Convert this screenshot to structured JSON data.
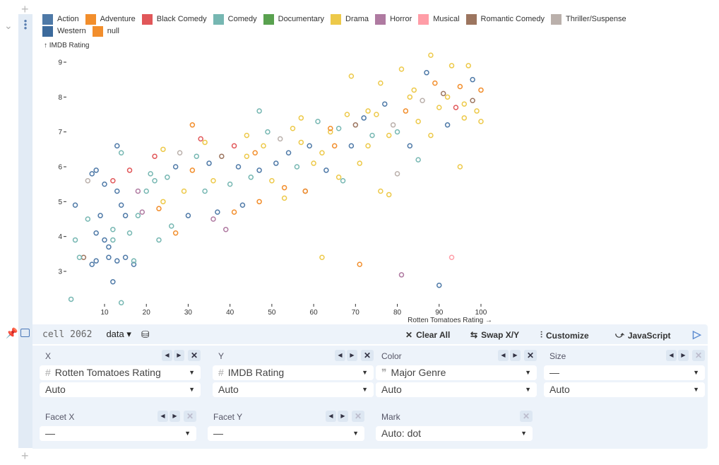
{
  "legend": [
    {
      "label": "Action",
      "color": "#4e79a7"
    },
    {
      "label": "Adventure",
      "color": "#f28e2c"
    },
    {
      "label": "Black Comedy",
      "color": "#e15759"
    },
    {
      "label": "Comedy",
      "color": "#76b7b2"
    },
    {
      "label": "Documentary",
      "color": "#59a14f"
    },
    {
      "label": "Drama",
      "color": "#edc949"
    },
    {
      "label": "Horror",
      "color": "#af7aa1"
    },
    {
      "label": "Musical",
      "color": "#ff9da7"
    },
    {
      "label": "Romantic Comedy",
      "color": "#9c755f"
    },
    {
      "label": "Thriller/Suspense",
      "color": "#bab0ab"
    },
    {
      "label": "Western",
      "color": "#3c6a9c"
    },
    {
      "label": "null",
      "color": "#f28e2c"
    }
  ],
  "chart_data": {
    "type": "scatter",
    "xlabel": "Rotten Tomatoes Rating →",
    "ylabel": "↑ IMDB Rating",
    "xlim": [
      0,
      102
    ],
    "ylim": [
      2,
      9.4
    ],
    "xticks": [
      10,
      20,
      30,
      40,
      50,
      60,
      70,
      80,
      90,
      100
    ],
    "yticks": [
      3,
      4,
      5,
      6,
      7,
      8,
      9
    ],
    "points": [
      [
        2,
        2.2,
        3
      ],
      [
        14,
        2.1,
        3
      ],
      [
        12,
        2.7,
        0
      ],
      [
        62,
        3.4,
        5
      ],
      [
        71,
        3.2,
        1
      ],
      [
        81,
        2.9,
        6
      ],
      [
        90,
        2.6,
        0
      ],
      [
        93,
        3.4,
        7
      ],
      [
        88,
        9.2,
        5
      ],
      [
        98,
        8.5,
        0
      ],
      [
        47,
        7.6,
        3
      ],
      [
        31,
        7.2,
        1
      ],
      [
        69,
        8.6,
        5
      ],
      [
        13,
        6.6,
        0
      ],
      [
        14,
        6.4,
        3
      ],
      [
        76,
        5.3,
        5
      ],
      [
        95,
        6.0,
        5
      ],
      [
        3,
        3.9,
        3
      ],
      [
        5,
        3.4,
        8
      ],
      [
        4,
        3.4,
        3
      ],
      [
        7,
        3.2,
        0
      ],
      [
        8,
        3.3,
        0
      ],
      [
        8,
        4.1,
        0
      ],
      [
        10,
        3.9,
        0
      ],
      [
        11,
        3.7,
        0
      ],
      [
        11,
        3.4,
        0
      ],
      [
        13,
        3.3,
        0
      ],
      [
        15,
        3.4,
        0
      ],
      [
        12,
        3.9,
        3
      ],
      [
        17,
        3.2,
        0
      ],
      [
        17,
        3.3,
        3
      ],
      [
        3,
        4.9,
        0
      ],
      [
        6,
        4.5,
        3
      ],
      [
        7,
        5.8,
        0
      ],
      [
        6,
        5.6,
        9
      ],
      [
        8,
        5.9,
        0
      ],
      [
        10,
        5.5,
        0
      ],
      [
        12,
        5.6,
        2
      ],
      [
        13,
        5.3,
        0
      ],
      [
        14,
        4.9,
        0
      ],
      [
        15,
        4.6,
        0
      ],
      [
        16,
        5.9,
        2
      ],
      [
        18,
        5.3,
        6
      ],
      [
        18,
        4.6,
        3
      ],
      [
        20,
        5.3,
        3
      ],
      [
        21,
        5.8,
        3
      ],
      [
        22,
        6.3,
        2
      ],
      [
        22,
        5.6,
        3
      ],
      [
        23,
        4.8,
        1
      ],
      [
        24,
        5.0,
        5
      ],
      [
        25,
        5.7,
        3
      ],
      [
        26,
        4.3,
        3
      ],
      [
        27,
        6.0,
        0
      ],
      [
        28,
        6.4,
        9
      ],
      [
        29,
        5.3,
        5
      ],
      [
        30,
        4.6,
        0
      ],
      [
        31,
        5.9,
        1
      ],
      [
        32,
        6.3,
        3
      ],
      [
        33,
        6.8,
        2
      ],
      [
        34,
        5.3,
        3
      ],
      [
        35,
        6.1,
        0
      ],
      [
        36,
        5.6,
        5
      ],
      [
        37,
        4.7,
        0
      ],
      [
        38,
        6.3,
        8
      ],
      [
        39,
        4.2,
        6
      ],
      [
        40,
        5.5,
        3
      ],
      [
        41,
        6.6,
        2
      ],
      [
        42,
        6.0,
        0
      ],
      [
        43,
        4.9,
        0
      ],
      [
        44,
        6.3,
        5
      ],
      [
        45,
        5.7,
        3
      ],
      [
        46,
        6.4,
        1
      ],
      [
        47,
        5.9,
        0
      ],
      [
        48,
        6.6,
        5
      ],
      [
        49,
        7.0,
        3
      ],
      [
        50,
        5.6,
        5
      ],
      [
        51,
        6.1,
        0
      ],
      [
        52,
        6.8,
        9
      ],
      [
        53,
        5.4,
        1
      ],
      [
        54,
        6.4,
        0
      ],
      [
        55,
        7.1,
        5
      ],
      [
        56,
        6.0,
        3
      ],
      [
        57,
        6.7,
        5
      ],
      [
        58,
        5.3,
        8
      ],
      [
        59,
        6.6,
        0
      ],
      [
        60,
        6.1,
        5
      ],
      [
        61,
        7.3,
        3
      ],
      [
        62,
        6.4,
        5
      ],
      [
        63,
        5.9,
        0
      ],
      [
        64,
        7.0,
        5
      ],
      [
        65,
        6.6,
        1
      ],
      [
        66,
        7.1,
        3
      ],
      [
        67,
        5.6,
        3
      ],
      [
        68,
        7.5,
        5
      ],
      [
        69,
        6.6,
        0
      ],
      [
        70,
        7.2,
        8
      ],
      [
        71,
        6.1,
        5
      ],
      [
        72,
        7.4,
        0
      ],
      [
        73,
        6.6,
        5
      ],
      [
        74,
        6.9,
        3
      ],
      [
        75,
        7.5,
        5
      ],
      [
        76,
        8.4,
        5
      ],
      [
        77,
        7.8,
        0
      ],
      [
        78,
        6.9,
        5
      ],
      [
        79,
        7.2,
        9
      ],
      [
        80,
        7.0,
        3
      ],
      [
        81,
        8.8,
        5
      ],
      [
        82,
        7.6,
        1
      ],
      [
        83,
        6.6,
        0
      ],
      [
        84,
        8.2,
        5
      ],
      [
        85,
        7.3,
        5
      ],
      [
        86,
        7.9,
        9
      ],
      [
        87,
        8.7,
        0
      ],
      [
        88,
        6.9,
        5
      ],
      [
        89,
        8.4,
        1
      ],
      [
        90,
        7.7,
        5
      ],
      [
        91,
        8.1,
        8
      ],
      [
        92,
        7.2,
        0
      ],
      [
        93,
        8.9,
        5
      ],
      [
        94,
        7.7,
        2
      ],
      [
        95,
        8.3,
        1
      ],
      [
        96,
        7.4,
        5
      ],
      [
        97,
        8.9,
        5
      ],
      [
        98,
        7.9,
        8
      ],
      [
        99,
        7.6,
        5
      ],
      [
        100,
        8.2,
        1
      ],
      [
        100,
        7.3,
        5
      ],
      [
        85,
        6.2,
        3
      ],
      [
        80,
        5.8,
        9
      ],
      [
        78,
        5.2,
        5
      ],
      [
        66,
        5.7,
        5
      ],
      [
        58,
        5.3,
        1
      ],
      [
        53,
        5.1,
        5
      ],
      [
        47,
        5.0,
        1
      ],
      [
        41,
        4.7,
        1
      ],
      [
        36,
        4.5,
        6
      ],
      [
        27,
        4.1,
        1
      ],
      [
        23,
        3.9,
        3
      ],
      [
        19,
        4.7,
        6
      ],
      [
        16,
        4.1,
        3
      ],
      [
        12,
        4.2,
        3
      ],
      [
        9,
        4.6,
        0
      ],
      [
        24,
        6.5,
        5
      ],
      [
        34,
        6.7,
        5
      ],
      [
        44,
        6.9,
        5
      ],
      [
        57,
        7.4,
        5
      ],
      [
        64,
        7.1,
        1
      ],
      [
        73,
        7.6,
        5
      ],
      [
        83,
        8.0,
        5
      ],
      [
        92,
        8.0,
        5
      ],
      [
        96,
        7.8,
        5
      ]
    ]
  },
  "panel": {
    "cell_name": "cell 2062",
    "data_label": "data",
    "toolbar": {
      "clear_all": "Clear All",
      "swap": "Swap X/Y",
      "customize": "Customize",
      "javascript": "JavaScript"
    },
    "x": {
      "label": "X",
      "field": "Rotten Tomatoes Rating",
      "scale": "Auto"
    },
    "y": {
      "label": "Y",
      "field": "IMDB Rating",
      "scale": "Auto"
    },
    "color": {
      "label": "Color",
      "field": "Major Genre",
      "scale": "Auto"
    },
    "size": {
      "label": "Size",
      "field": "—",
      "scale": "Auto"
    },
    "facet_x": {
      "label": "Facet X",
      "field": "—"
    },
    "facet_y": {
      "label": "Facet Y",
      "field": "—"
    },
    "mark": {
      "label": "Mark",
      "field": "Auto: dot"
    }
  }
}
